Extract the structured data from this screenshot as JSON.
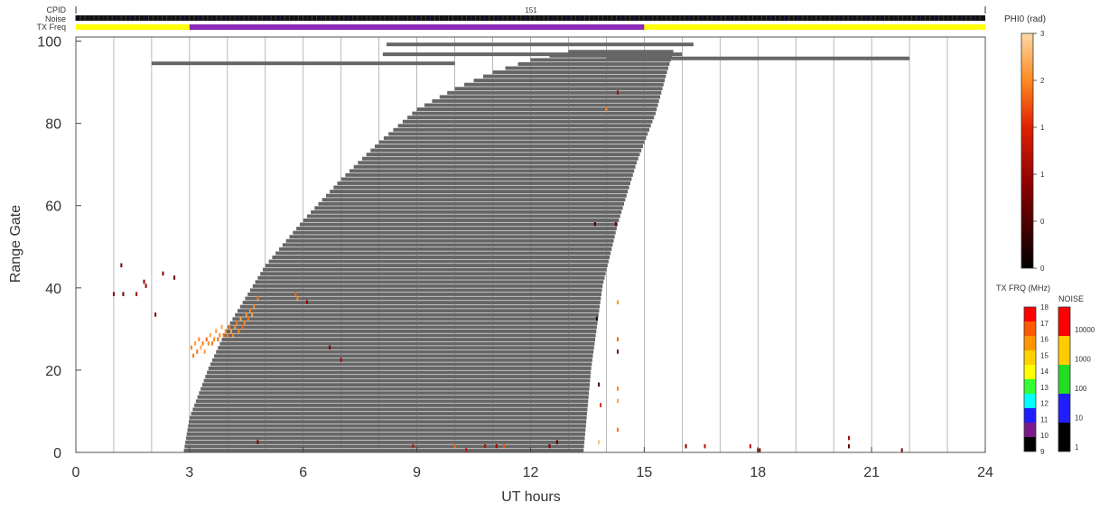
{
  "header": {
    "cpid_label": "CPID",
    "cpid_value": "151",
    "noise_label": "Noise",
    "txfreq_label": "TX Freq"
  },
  "colorbar_phi0": {
    "title": "PHI0 (rad)",
    "tick_labels": [
      "3",
      "2",
      "1",
      "1",
      "0",
      "0"
    ]
  },
  "colorbar_txfreq": {
    "title": "TX FRQ (MHz)",
    "labels": [
      "18",
      "17",
      "16",
      "15",
      "14",
      "13",
      "12",
      "11",
      "10",
      "9"
    ],
    "colors": [
      "#ff0000",
      "#ff5a00",
      "#ff9600",
      "#ffd200",
      "#ffff00",
      "#33ff33",
      "#00ffff",
      "#1e1eff",
      "#7a1a8a",
      "#000000"
    ]
  },
  "colorbar_noise": {
    "title": "NOISE",
    "labels": [
      "10000",
      "1000",
      "100",
      "10",
      "1"
    ],
    "colors": [
      "#ff0000",
      "#ffcc00",
      "#22dd22",
      "#1e1eff",
      "#000000"
    ]
  },
  "colors": {
    "grey_band": "#666666",
    "txfreq_low": "#ffff00",
    "txfreq_high": "#8a2ab5",
    "noise_bar": "#111111"
  },
  "chart_data": {
    "type": "scatter",
    "title": "",
    "xlabel": "UT hours",
    "ylabel": "Range Gate",
    "xlim": [
      0,
      24
    ],
    "ylim": [
      0,
      101
    ],
    "x_ticks": [
      0,
      3,
      6,
      9,
      12,
      15,
      18,
      21,
      24
    ],
    "y_ticks": [
      0,
      20,
      40,
      60,
      80,
      100
    ],
    "x_tick_labels": [
      "0",
      "3",
      "6",
      "9",
      "12",
      "15",
      "18",
      "21",
      "24"
    ],
    "y_tick_labels": [
      "0",
      "20",
      "40",
      "60",
      "80",
      "100"
    ],
    "grid": "vertical every hour",
    "cpid_timeline": [
      {
        "start": 0,
        "end": 24,
        "value": "151"
      }
    ],
    "txfreq_timeline": [
      {
        "start": 0,
        "end": 3,
        "mhz": 14
      },
      {
        "start": 3,
        "end": 15,
        "mhz": 10
      },
      {
        "start": 15,
        "end": 24,
        "mhz": 14
      }
    ],
    "ground_scatter_region": {
      "description": "grey ground scatter",
      "left_edge": [
        [
          2.85,
          0
        ],
        [
          3.0,
          8
        ],
        [
          3.5,
          20
        ],
        [
          4.0,
          30
        ],
        [
          5.0,
          45
        ],
        [
          6.0,
          56
        ],
        [
          7.0,
          66
        ],
        [
          8.0,
          75
        ],
        [
          9.0,
          83
        ],
        [
          10.0,
          88
        ],
        [
          11.0,
          92
        ],
        [
          12.0,
          95
        ],
        [
          13.0,
          97
        ],
        [
          14.0,
          98
        ],
        [
          15.5,
          98
        ]
      ],
      "right_edge": [
        [
          13.4,
          0
        ],
        [
          13.6,
          20
        ],
        [
          13.9,
          40
        ],
        [
          14.3,
          55
        ],
        [
          14.8,
          70
        ],
        [
          15.3,
          82
        ],
        [
          15.6,
          92
        ],
        [
          15.8,
          98
        ]
      ]
    },
    "grey_bars": [
      {
        "x0": 2.0,
        "x1": 10.0,
        "y": 94.6
      },
      {
        "x0": 8.2,
        "x1": 16.3,
        "y": 99.2
      },
      {
        "x0": 8.1,
        "x1": 16.0,
        "y": 96.8
      },
      {
        "x0": 14.0,
        "x1": 22.0,
        "y": 95.8
      }
    ],
    "phi0_points": [
      {
        "x": 1.0,
        "y": 38,
        "v": 1.0
      },
      {
        "x": 1.2,
        "y": 45,
        "v": 0.9
      },
      {
        "x": 1.25,
        "y": 38,
        "v": 0.8
      },
      {
        "x": 1.6,
        "y": 38,
        "v": 1.2
      },
      {
        "x": 1.8,
        "y": 41,
        "v": 1.0
      },
      {
        "x": 1.85,
        "y": 40,
        "v": 1.1
      },
      {
        "x": 2.1,
        "y": 33,
        "v": 0.9
      },
      {
        "x": 2.3,
        "y": 43,
        "v": 1.0
      },
      {
        "x": 2.6,
        "y": 42,
        "v": 0.8
      },
      {
        "x": 3.05,
        "y": 25,
        "v": 2.4
      },
      {
        "x": 3.1,
        "y": 23,
        "v": 2.3
      },
      {
        "x": 3.15,
        "y": 26,
        "v": 2.5
      },
      {
        "x": 3.2,
        "y": 24,
        "v": 2.2
      },
      {
        "x": 3.25,
        "y": 27,
        "v": 2.4
      },
      {
        "x": 3.3,
        "y": 25,
        "v": 2.6
      },
      {
        "x": 3.35,
        "y": 26,
        "v": 2.3
      },
      {
        "x": 3.4,
        "y": 24,
        "v": 2.5
      },
      {
        "x": 3.45,
        "y": 27,
        "v": 2.2
      },
      {
        "x": 3.5,
        "y": 26,
        "v": 2.4
      },
      {
        "x": 3.55,
        "y": 28,
        "v": 2.6
      },
      {
        "x": 3.6,
        "y": 26,
        "v": 2.3
      },
      {
        "x": 3.65,
        "y": 27,
        "v": 2.4
      },
      {
        "x": 3.7,
        "y": 29,
        "v": 2.5
      },
      {
        "x": 3.75,
        "y": 27,
        "v": 2.2
      },
      {
        "x": 3.8,
        "y": 28,
        "v": 2.4
      },
      {
        "x": 3.85,
        "y": 30,
        "v": 2.6
      },
      {
        "x": 3.9,
        "y": 28,
        "v": 2.3
      },
      {
        "x": 3.95,
        "y": 29,
        "v": 2.5
      },
      {
        "x": 4.0,
        "y": 28,
        "v": 2.4
      },
      {
        "x": 4.05,
        "y": 30,
        "v": 2.3
      },
      {
        "x": 4.1,
        "y": 29,
        "v": 2.6
      },
      {
        "x": 4.15,
        "y": 28,
        "v": 2.4
      },
      {
        "x": 4.2,
        "y": 30,
        "v": 2.5
      },
      {
        "x": 4.25,
        "y": 31,
        "v": 2.3
      },
      {
        "x": 4.3,
        "y": 29,
        "v": 2.4
      },
      {
        "x": 4.35,
        "y": 32,
        "v": 2.6
      },
      {
        "x": 4.4,
        "y": 30,
        "v": 2.2
      },
      {
        "x": 4.45,
        "y": 31,
        "v": 2.4
      },
      {
        "x": 4.5,
        "y": 33,
        "v": 2.5
      },
      {
        "x": 4.55,
        "y": 32,
        "v": 2.3
      },
      {
        "x": 4.6,
        "y": 34,
        "v": 2.4
      },
      {
        "x": 4.65,
        "y": 33,
        "v": 2.6
      },
      {
        "x": 4.7,
        "y": 35,
        "v": 2.4
      },
      {
        "x": 4.8,
        "y": 37,
        "v": 2.3
      },
      {
        "x": 5.8,
        "y": 38,
        "v": 2.2
      },
      {
        "x": 5.85,
        "y": 37,
        "v": 2.4
      },
      {
        "x": 6.1,
        "y": 36,
        "v": 1.2
      },
      {
        "x": 6.7,
        "y": 25,
        "v": 0.9
      },
      {
        "x": 7.0,
        "y": 22,
        "v": 1.3
      },
      {
        "x": 4.8,
        "y": 2,
        "v": 1.0
      },
      {
        "x": 8.9,
        "y": 1,
        "v": 1.5
      },
      {
        "x": 10.0,
        "y": 1,
        "v": 2.2
      },
      {
        "x": 10.3,
        "y": 0,
        "v": 1.6
      },
      {
        "x": 10.8,
        "y": 1,
        "v": 1.4
      },
      {
        "x": 11.1,
        "y": 1,
        "v": 1.2
      },
      {
        "x": 11.3,
        "y": 1,
        "v": 2.1
      },
      {
        "x": 12.5,
        "y": 1,
        "v": 1.0
      },
      {
        "x": 12.7,
        "y": 2,
        "v": 0.8
      },
      {
        "x": 13.7,
        "y": 55,
        "v": 0.5
      },
      {
        "x": 13.75,
        "y": 32,
        "v": 0.2
      },
      {
        "x": 13.8,
        "y": 16,
        "v": 0.6
      },
      {
        "x": 13.85,
        "y": 11,
        "v": 1.8
      },
      {
        "x": 14.0,
        "y": 83,
        "v": 2.4
      },
      {
        "x": 14.3,
        "y": 87,
        "v": 1.3
      },
      {
        "x": 14.25,
        "y": 55,
        "v": 0.8
      },
      {
        "x": 14.3,
        "y": 36,
        "v": 2.5
      },
      {
        "x": 14.3,
        "y": 27,
        "v": 2.2
      },
      {
        "x": 14.3,
        "y": 24,
        "v": 0.9
      },
      {
        "x": 14.3,
        "y": 15,
        "v": 2.4
      },
      {
        "x": 14.3,
        "y": 12,
        "v": 2.6
      },
      {
        "x": 14.3,
        "y": 5,
        "v": 2.3
      },
      {
        "x": 13.8,
        "y": 2,
        "v": 2.8
      },
      {
        "x": 16.1,
        "y": 1,
        "v": 1.0
      },
      {
        "x": 16.6,
        "y": 1,
        "v": 1.5
      },
      {
        "x": 17.8,
        "y": 1,
        "v": 1.4
      },
      {
        "x": 18.0,
        "y": 0,
        "v": 0.9
      },
      {
        "x": 18.05,
        "y": 0,
        "v": 1.1
      },
      {
        "x": 20.4,
        "y": 1,
        "v": 0.8
      },
      {
        "x": 20.4,
        "y": 3,
        "v": 1.2
      },
      {
        "x": 21.8,
        "y": 0,
        "v": 0.9
      }
    ]
  }
}
